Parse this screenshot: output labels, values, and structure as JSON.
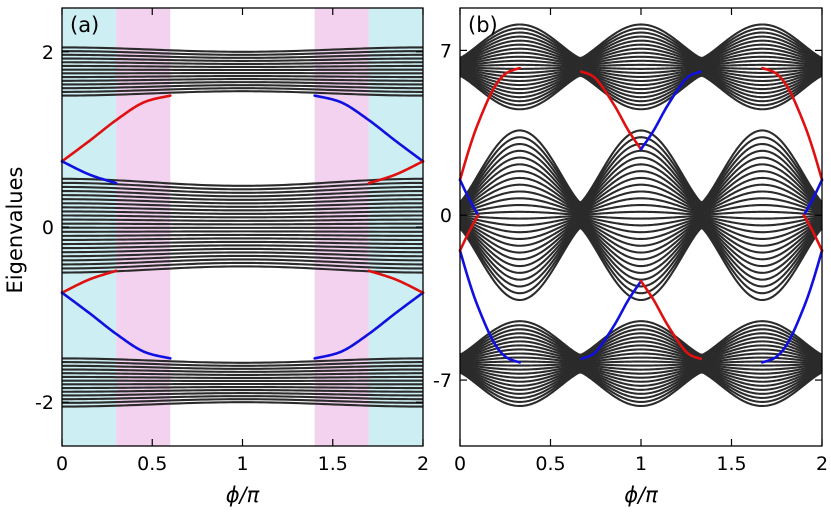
{
  "ylabel": "Eigenvalues",
  "chart_data": [
    {
      "type": "line",
      "panel_label": "(a)",
      "title": "",
      "xlabel": "ϕ/π",
      "ylabel": "Eigenvalues",
      "xlim": [
        0,
        2
      ],
      "ylim": [
        -2.5,
        2.5
      ],
      "xticks": [
        0,
        0.5,
        1,
        1.5,
        2
      ],
      "xtick_labels": [
        "0",
        "0.5",
        "1",
        "1.5",
        "2"
      ],
      "yticks": [
        2,
        0,
        -2
      ],
      "ytick_labels": [
        "2",
        "0",
        "-2"
      ],
      "grid": false,
      "shaded_regions": [
        {
          "x": [
            0,
            0.3
          ],
          "color": "#cdeef2"
        },
        {
          "x": [
            0.3,
            0.6
          ],
          "color": "#f3d2f0"
        },
        {
          "x": [
            1.4,
            1.7
          ],
          "color": "#f3d2f0"
        },
        {
          "x": [
            1.7,
            2
          ],
          "color": "#cdeef2"
        }
      ],
      "bulk_bands": [
        {
          "y_range_at_phi0": [
            1.5,
            2.05
          ],
          "y_range_at_phi1": [
            1.55,
            2.0
          ],
          "n_lines": 14,
          "color": "#2b2b2b"
        },
        {
          "y_range_at_phi0": [
            -0.52,
            0.55
          ],
          "y_range_at_phi1": [
            -0.45,
            0.47
          ],
          "n_lines": 24,
          "color": "#2b2b2b"
        },
        {
          "y_range_at_phi0": [
            -2.05,
            -1.5
          ],
          "y_range_at_phi1": [
            -2.0,
            -1.55
          ],
          "n_lines": 14,
          "color": "#2b2b2b"
        }
      ],
      "series": [
        {
          "color": "#e01010",
          "x": [
            0,
            0.15,
            0.3,
            0.45,
            0.6
          ],
          "y": [
            0.75,
            0.98,
            1.22,
            1.42,
            1.5
          ]
        },
        {
          "color": "#1010e0",
          "x": [
            0,
            0.15,
            0.3
          ],
          "y": [
            0.75,
            0.6,
            0.5
          ]
        },
        {
          "color": "#1010e0",
          "x": [
            1.4,
            1.55,
            1.7,
            1.85,
            2
          ],
          "y": [
            1.5,
            1.42,
            1.22,
            0.98,
            0.75
          ]
        },
        {
          "color": "#e01010",
          "x": [
            1.7,
            1.85,
            2
          ],
          "y": [
            0.5,
            0.6,
            0.75
          ]
        },
        {
          "color": "#e01010",
          "x": [
            0,
            0.15,
            0.3
          ],
          "y": [
            -0.75,
            -0.6,
            -0.5
          ]
        },
        {
          "color": "#1010e0",
          "x": [
            0,
            0.15,
            0.3,
            0.45,
            0.6
          ],
          "y": [
            -0.75,
            -0.98,
            -1.22,
            -1.42,
            -1.5
          ]
        },
        {
          "color": "#1010e0",
          "x": [
            1.4,
            1.55,
            1.7,
            1.85,
            2
          ],
          "y": [
            -1.5,
            -1.42,
            -1.22,
            -0.98,
            -0.75
          ]
        },
        {
          "color": "#e01010",
          "x": [
            1.7,
            1.85,
            2
          ],
          "y": [
            -0.5,
            -0.6,
            -0.75
          ]
        }
      ]
    },
    {
      "type": "line",
      "panel_label": "(b)",
      "title": "",
      "xlabel": "ϕ/π",
      "ylabel": "",
      "xlim": [
        0,
        2
      ],
      "ylim": [
        -9.8,
        8.8
      ],
      "xticks": [
        0,
        0.5,
        1,
        1.5,
        2
      ],
      "xtick_labels": [
        "0",
        "0.5",
        "1",
        "1.5",
        "2"
      ],
      "yticks": [
        7,
        0,
        -7
      ],
      "ytick_labels": [
        "7",
        "0",
        "-7"
      ],
      "grid": false,
      "bulk_bands": [
        {
          "center_y": 6.3,
          "peaks_x": [
            0.33,
            1.0,
            1.67
          ],
          "peak_half_width": 1.8,
          "node_half_width": 0.35,
          "n_lines": 22,
          "color": "#2b2b2b"
        },
        {
          "center_y": 0,
          "peaks_x": [
            0.33,
            1.0,
            1.67
          ],
          "peak_half_width": 3.6,
          "node_half_width": 0.5,
          "n_lines": 26,
          "color": "#2b2b2b"
        },
        {
          "center_y": -6.3,
          "peaks_x": [
            0.33,
            1.0,
            1.67
          ],
          "peak_half_width": 1.8,
          "node_half_width": 0.35,
          "n_lines": 22,
          "color": "#2b2b2b"
        }
      ],
      "series": [
        {
          "color": "#1010e0",
          "x": [
            0,
            0.05,
            0.1,
            0.18,
            0.25,
            0.33
          ],
          "y": [
            -1.5,
            -2.8,
            -3.9,
            -5.3,
            -6.0,
            -6.25
          ]
        },
        {
          "color": "#e01010",
          "x": [
            0,
            0.05,
            0.1,
            0.18,
            0.25,
            0.33
          ],
          "y": [
            1.5,
            2.8,
            3.9,
            5.3,
            6.0,
            6.25
          ]
        },
        {
          "color": "#1010e0",
          "x": [
            0,
            0.05,
            0.1
          ],
          "y": [
            1.5,
            0.7,
            0
          ]
        },
        {
          "color": "#e01010",
          "x": [
            0,
            0.05,
            0.1
          ],
          "y": [
            -1.5,
            -0.7,
            0
          ]
        },
        {
          "color": "#e01010",
          "x": [
            0.67,
            0.75,
            0.85,
            0.93,
            1.0
          ],
          "y": [
            6.1,
            5.8,
            4.7,
            3.6,
            2.8
          ]
        },
        {
          "color": "#1010e0",
          "x": [
            1.0,
            1.07,
            1.15,
            1.25,
            1.33
          ],
          "y": [
            2.8,
            3.6,
            4.7,
            5.8,
            6.1
          ]
        },
        {
          "color": "#1010e0",
          "x": [
            0.67,
            0.75,
            0.85,
            0.93,
            1.0
          ],
          "y": [
            -6.1,
            -5.8,
            -4.7,
            -3.6,
            -2.8
          ]
        },
        {
          "color": "#e01010",
          "x": [
            1.0,
            1.07,
            1.15,
            1.25,
            1.33
          ],
          "y": [
            -2.8,
            -3.6,
            -4.7,
            -5.8,
            -6.1
          ]
        },
        {
          "color": "#e01010",
          "x": [
            1.67,
            1.75,
            1.82,
            1.9,
            1.95,
            2.0
          ],
          "y": [
            6.25,
            6.0,
            5.3,
            3.9,
            2.8,
            1.5
          ]
        },
        {
          "color": "#1010e0",
          "x": [
            1.67,
            1.75,
            1.82,
            1.9,
            1.95,
            2.0
          ],
          "y": [
            -6.25,
            -6.0,
            -5.3,
            -3.9,
            -2.8,
            -1.5
          ]
        },
        {
          "color": "#1010e0",
          "x": [
            1.9,
            1.95,
            2.0
          ],
          "y": [
            0,
            0.7,
            1.5
          ]
        },
        {
          "color": "#e01010",
          "x": [
            1.9,
            1.95,
            2.0
          ],
          "y": [
            0,
            -0.7,
            -1.5
          ]
        }
      ]
    }
  ]
}
